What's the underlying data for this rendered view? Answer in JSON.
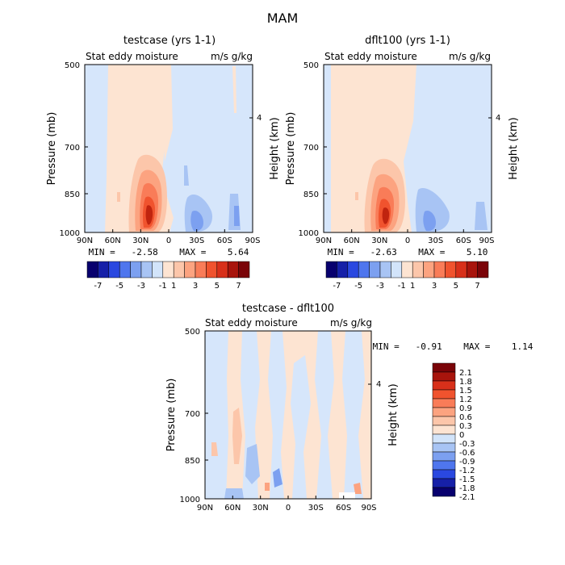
{
  "figure_title": "MAM",
  "chart_data": [
    {
      "type": "heatmap",
      "id": "p1",
      "title": "testcase (yrs 1-1)",
      "left_label": "Stat eddy moisture",
      "right_label": "m/s g/kg",
      "ylabel": "Pressure (mb)",
      "y2label": "Height (km)",
      "x_ticks": [
        "90N",
        "60N",
        "30N",
        "0",
        "30S",
        "60S",
        "90S"
      ],
      "y_ticks": [
        "500",
        "700",
        "850",
        "1000"
      ],
      "y2_ticks": [
        "4"
      ],
      "stats": "MIN =   -2.58    MAX =    5.64",
      "colorbar_labels": [
        "-7",
        "-5",
        "-3",
        "-1",
        "1",
        "3",
        "5",
        "7"
      ],
      "colorbar_colors": [
        "#08006e",
        "#1620a8",
        "#2a48e0",
        "#4f76ee",
        "#7ca0f0",
        "#a8c4f4",
        "#d2e4fa",
        "#fde4d2",
        "#fcc6aa",
        "#fca380",
        "#f97c58",
        "#f0532e",
        "#d8301a",
        "#a8140c",
        "#7a0408"
      ]
    },
    {
      "type": "heatmap",
      "id": "p2",
      "title": "dflt100 (yrs 1-1)",
      "left_label": "Stat eddy moisture",
      "right_label": "m/s g/kg",
      "ylabel": "Pressure (mb)",
      "y2label": "Height (km)",
      "x_ticks": [
        "90N",
        "60N",
        "30N",
        "0",
        "30S",
        "60S",
        "90S"
      ],
      "y_ticks": [
        "500",
        "700",
        "850",
        "1000"
      ],
      "y2_ticks": [
        "4"
      ],
      "stats": "MIN =   -2.63    MAX =    5.10",
      "colorbar_labels": [
        "-7",
        "-5",
        "-3",
        "-1",
        "1",
        "3",
        "5",
        "7"
      ],
      "colorbar_colors": [
        "#08006e",
        "#1620a8",
        "#2a48e0",
        "#4f76ee",
        "#7ca0f0",
        "#a8c4f4",
        "#d2e4fa",
        "#fde4d2",
        "#fcc6aa",
        "#fca380",
        "#f97c58",
        "#f0532e",
        "#d8301a",
        "#a8140c",
        "#7a0408"
      ]
    },
    {
      "type": "heatmap",
      "id": "p3",
      "title": "testcase - dflt100",
      "left_label": "Stat eddy moisture",
      "right_label": "m/s g/kg",
      "ylabel": "Pressure (mb)",
      "y2label": "Height (km)",
      "x_ticks": [
        "90N",
        "60N",
        "30N",
        "0",
        "30S",
        "60S",
        "90S"
      ],
      "y_ticks": [
        "500",
        "700",
        "850",
        "1000"
      ],
      "y2_ticks": [
        "4"
      ],
      "stats": "MIN =   -0.91    MAX =    1.14",
      "colorbar_labels": [
        "2.1",
        "1.8",
        "1.5",
        "1.2",
        "0.9",
        "0.6",
        "0.3",
        "0",
        "-0.3",
        "-0.6",
        "-0.9",
        "-1.2",
        "-1.5",
        "-1.8",
        "-2.1"
      ],
      "colorbar_colors": [
        "#7a0408",
        "#a8140c",
        "#d8301a",
        "#f0532e",
        "#f97c58",
        "#fca380",
        "#fcc6aa",
        "#fde4d2",
        "#d2e4fa",
        "#a8c4f4",
        "#7ca0f0",
        "#4f76ee",
        "#2a48e0",
        "#1620a8",
        "#08006e"
      ]
    }
  ]
}
